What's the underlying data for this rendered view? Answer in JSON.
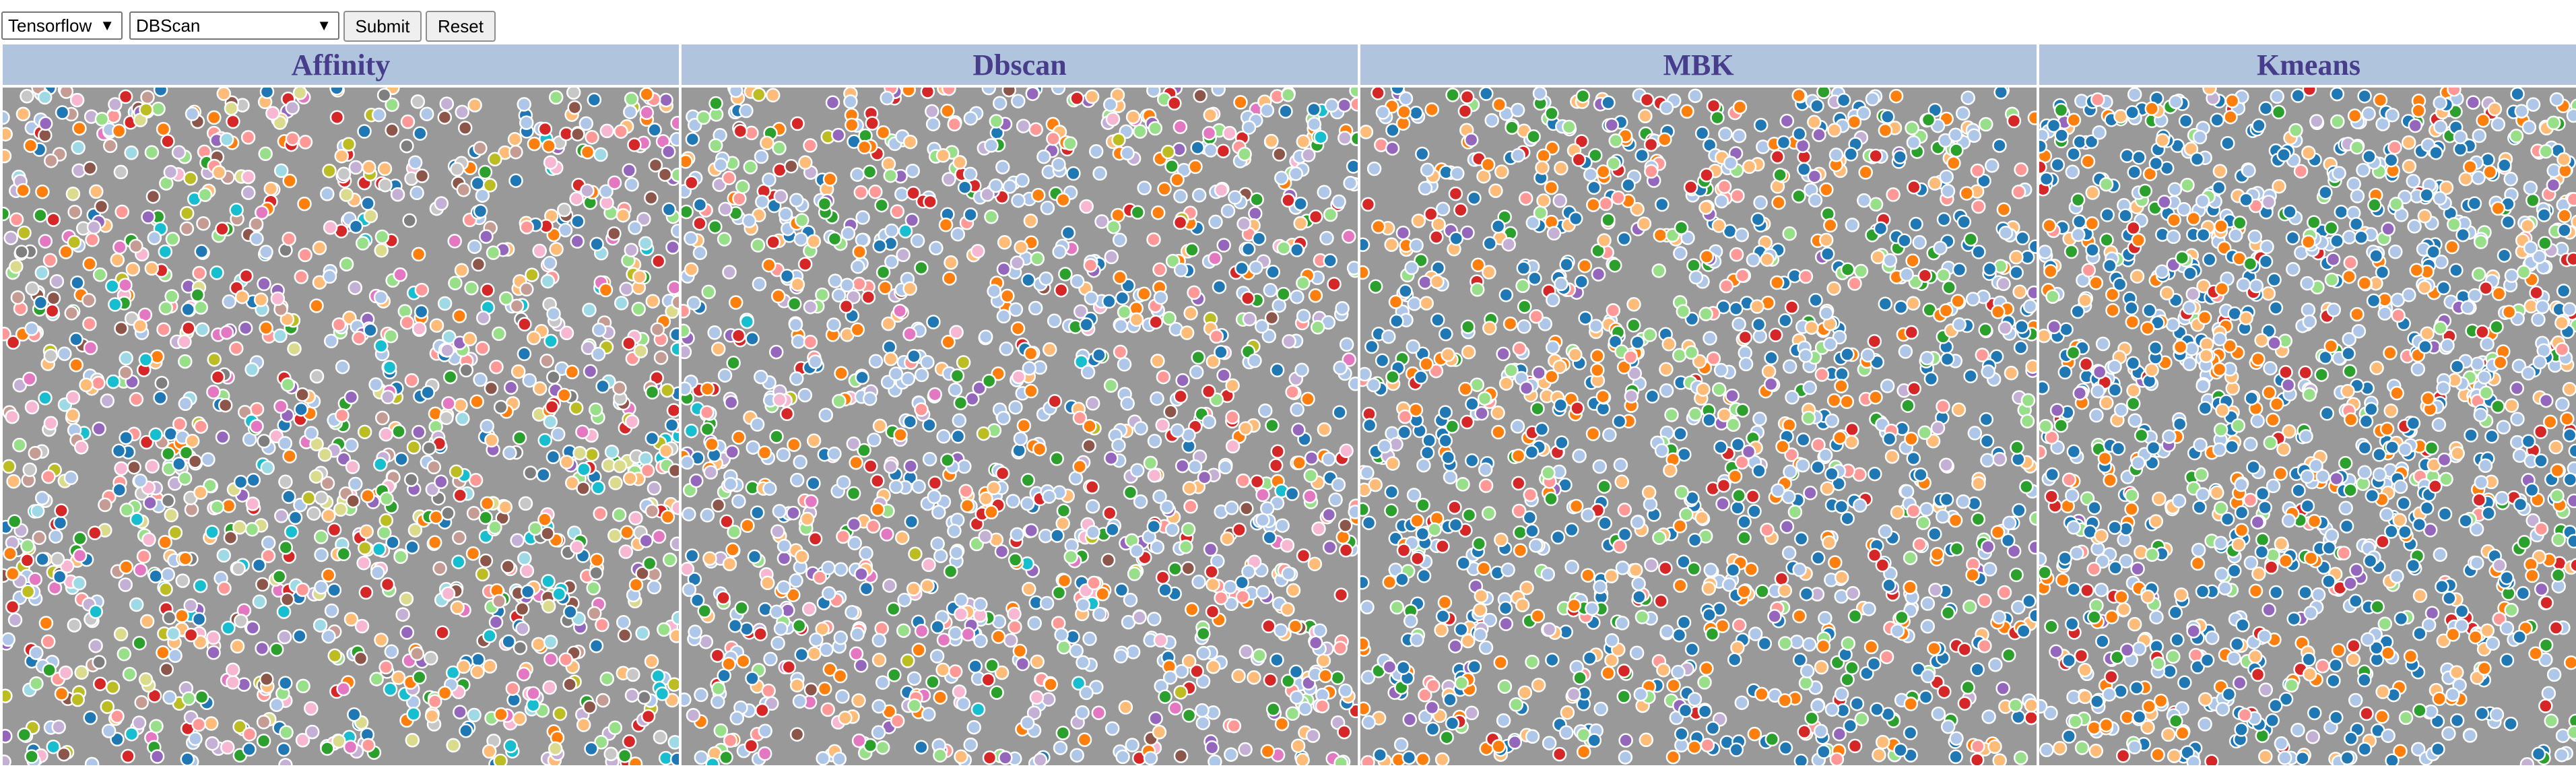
{
  "toolbar": {
    "library_select": {
      "value": "Tensorflow",
      "caret": "▼"
    },
    "algorithm_select": {
      "value": "DBScan",
      "caret": "▼"
    },
    "submit_label": "Submit",
    "reset_label": "Reset"
  },
  "panels": [
    {
      "title": "Affinity",
      "palette": [
        "#1f77b4",
        "#aec7e8",
        "#ff7f0e",
        "#ffbb78",
        "#2ca02c",
        "#98df8a",
        "#d62728",
        "#ff9896",
        "#9467bd",
        "#c5b0d5",
        "#8c564b",
        "#c49c94",
        "#e377c2",
        "#f7b6d2",
        "#7f7f7f",
        "#c7c7c7",
        "#bcbd22",
        "#dbdb8d",
        "#17becf",
        "#9edae5"
      ],
      "weights": [
        8,
        8,
        6,
        6,
        5,
        5,
        5,
        5,
        5,
        5,
        4,
        4,
        4,
        5,
        3,
        4,
        4,
        4,
        4,
        3
      ],
      "count": 1500,
      "seed": 11
    },
    {
      "title": "Dbscan",
      "palette": [
        "#aec7e8",
        "#1f77b4",
        "#ff7f0e",
        "#ffbb78",
        "#2ca02c",
        "#98df8a",
        "#d62728",
        "#ff9896",
        "#9467bd",
        "#c5b0d5",
        "#8c564b",
        "#e377c2",
        "#f7b6d2",
        "#bcbd22",
        "#17becf"
      ],
      "weights": [
        30,
        10,
        9,
        9,
        6,
        6,
        6,
        6,
        5,
        5,
        2,
        2,
        3,
        2,
        1
      ],
      "count": 1500,
      "seed": 23
    },
    {
      "title": "MBK",
      "palette": [
        "#1f77b4",
        "#aec7e8",
        "#ff7f0e",
        "#ffbb78",
        "#2ca02c",
        "#98df8a",
        "#d62728",
        "#ff9896",
        "#9467bd",
        "#c5b0d5"
      ],
      "weights": [
        22,
        20,
        14,
        12,
        8,
        7,
        6,
        5,
        4,
        2
      ],
      "count": 1500,
      "seed": 37
    },
    {
      "title": "Kmeans",
      "palette": [
        "#1f77b4",
        "#aec7e8",
        "#ff7f0e",
        "#ffbb78",
        "#2ca02c",
        "#98df8a",
        "#d62728",
        "#ff9896",
        "#9467bd",
        "#c5b0d5"
      ],
      "weights": [
        28,
        26,
        12,
        10,
        6,
        6,
        5,
        3,
        3,
        1
      ],
      "count": 1500,
      "seed": 53
    }
  ]
}
